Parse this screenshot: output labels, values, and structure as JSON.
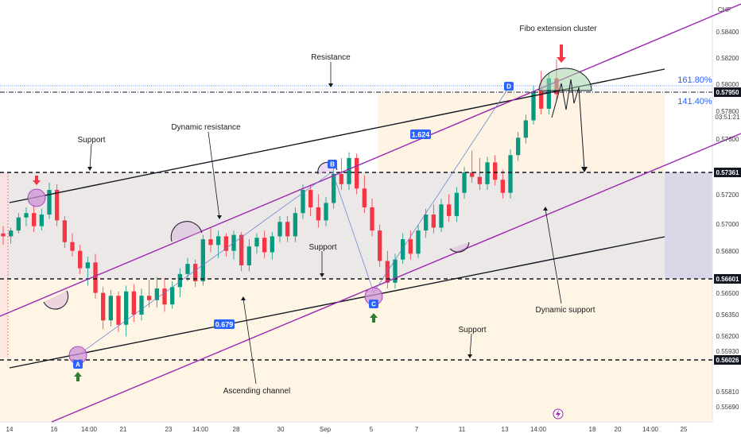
{
  "currency": "CHF",
  "colors": {
    "up": "#089981",
    "down": "#f23645",
    "channel_purple": "#9c27b0",
    "accent_blue": "#2962ff",
    "band": "#d9d2cf",
    "arrow_green": "#2e7d32",
    "arrow_red": "#f23645"
  },
  "chart_data": {
    "type": "candlestick",
    "instrument_currency": "CHF",
    "x_tick_labels": [
      "14",
      "16",
      "14:00",
      "21",
      "23",
      "14:00",
      "28",
      "30",
      "Sep",
      "5",
      "7",
      "11",
      "13",
      "14:00",
      "18",
      "20",
      "14:00",
      "25"
    ],
    "y_tick_labels": [
      "0.58400",
      "0.58200",
      "0.58000",
      "0.57800",
      "0.57600",
      "0.57200",
      "0.57000",
      "0.56800",
      "0.56500",
      "0.56350",
      "0.56200",
      "0.55930",
      "0.55810",
      "0.55690"
    ],
    "ylim": [
      0.5558,
      0.5849
    ],
    "price_levels": [
      {
        "value": 0.5795,
        "label": "0.57950",
        "style": "dash-dot"
      },
      {
        "value": 0.57361,
        "label": "0.57361",
        "style": "dashed"
      },
      {
        "value": 0.56601,
        "label": "0.56601",
        "style": "dashed"
      },
      {
        "value": 0.56026,
        "label": "0.56026",
        "style": "dashed"
      }
    ],
    "current_time_label": "03:51:21",
    "fibo_levels": [
      {
        "label": "161.80%",
        "value": 0.58
      },
      {
        "label": "141.40%",
        "value": 0.5783
      }
    ],
    "measure_labels": [
      "0.679",
      "1.624"
    ],
    "pattern_points": [
      {
        "label": "A",
        "value": 0.5603
      },
      {
        "label": "B",
        "value": 0.5745
      },
      {
        "label": "C",
        "value": 0.565
      },
      {
        "label": "D",
        "value": 0.5796
      }
    ],
    "annotations": [
      "Fibo extension cluster",
      "Resistance",
      "Dynamic resistance",
      "Support",
      "Support",
      "Support",
      "Ascending channel",
      "Dynamic support"
    ],
    "candles": [
      [
        0.5688,
        0.5693,
        0.568,
        0.5686
      ],
      [
        0.5686,
        0.5692,
        0.5681,
        0.569
      ],
      [
        0.569,
        0.5702,
        0.5688,
        0.5699
      ],
      [
        0.5699,
        0.5706,
        0.5693,
        0.5702
      ],
      [
        0.5702,
        0.5708,
        0.5689,
        0.5693
      ],
      [
        0.5693,
        0.5705,
        0.569,
        0.5701
      ],
      [
        0.5701,
        0.5723,
        0.5698,
        0.5718
      ],
      [
        0.5718,
        0.5722,
        0.5693,
        0.5697
      ],
      [
        0.5697,
        0.57,
        0.5678,
        0.5682
      ],
      [
        0.5682,
        0.5688,
        0.5672,
        0.5676
      ],
      [
        0.5676,
        0.568,
        0.566,
        0.5664
      ],
      [
        0.5664,
        0.5672,
        0.5652,
        0.5668
      ],
      [
        0.5668,
        0.5674,
        0.5643,
        0.5647
      ],
      [
        0.5647,
        0.5651,
        0.5622,
        0.5628
      ],
      [
        0.5628,
        0.5649,
        0.5624,
        0.5645
      ],
      [
        0.5645,
        0.5648,
        0.562,
        0.5625
      ],
      [
        0.5625,
        0.5652,
        0.5617,
        0.5648
      ],
      [
        0.5648,
        0.5653,
        0.5627,
        0.5632
      ],
      [
        0.5632,
        0.565,
        0.5628,
        0.5645
      ],
      [
        0.5645,
        0.5656,
        0.5637,
        0.5642
      ],
      [
        0.5642,
        0.5658,
        0.5637,
        0.565
      ],
      [
        0.565,
        0.5657,
        0.5634,
        0.5639
      ],
      [
        0.5639,
        0.5655,
        0.5636,
        0.5651
      ],
      [
        0.5651,
        0.5664,
        0.5644,
        0.566
      ],
      [
        0.566,
        0.5671,
        0.5655,
        0.5667
      ],
      [
        0.5667,
        0.567,
        0.5651,
        0.5655
      ],
      [
        0.5655,
        0.5687,
        0.5652,
        0.5684
      ],
      [
        0.5684,
        0.5692,
        0.5675,
        0.568
      ],
      [
        0.568,
        0.569,
        0.5671,
        0.5686
      ],
      [
        0.5686,
        0.5688,
        0.5672,
        0.5676
      ],
      [
        0.5676,
        0.569,
        0.567,
        0.5687
      ],
      [
        0.5687,
        0.5689,
        0.5662,
        0.5666
      ],
      [
        0.5666,
        0.5684,
        0.5662,
        0.5679
      ],
      [
        0.5679,
        0.5688,
        0.5674,
        0.5685
      ],
      [
        0.5685,
        0.569,
        0.5671,
        0.5675
      ],
      [
        0.5675,
        0.5689,
        0.567,
        0.5686
      ],
      [
        0.5686,
        0.57,
        0.5682,
        0.5696
      ],
      [
        0.5696,
        0.57,
        0.5682,
        0.5686
      ],
      [
        0.5686,
        0.5706,
        0.5682,
        0.5702
      ],
      [
        0.5702,
        0.5722,
        0.5698,
        0.5718
      ],
      [
        0.5718,
        0.5722,
        0.57,
        0.5706
      ],
      [
        0.5706,
        0.5715,
        0.5692,
        0.5697
      ],
      [
        0.5697,
        0.5713,
        0.5693,
        0.5709
      ],
      [
        0.5709,
        0.5733,
        0.5705,
        0.5729
      ],
      [
        0.5729,
        0.574,
        0.5718,
        0.5722
      ],
      [
        0.5722,
        0.5744,
        0.5718,
        0.574
      ],
      [
        0.574,
        0.5743,
        0.5715,
        0.5719
      ],
      [
        0.5719,
        0.5728,
        0.5702,
        0.5706
      ],
      [
        0.5706,
        0.5712,
        0.5686,
        0.569
      ],
      [
        0.569,
        0.5694,
        0.5665,
        0.5669
      ],
      [
        0.5669,
        0.5676,
        0.565,
        0.5654
      ],
      [
        0.5654,
        0.5674,
        0.565,
        0.567
      ],
      [
        0.567,
        0.5688,
        0.5667,
        0.5684
      ],
      [
        0.5684,
        0.569,
        0.567,
        0.5674
      ],
      [
        0.5674,
        0.5694,
        0.5671,
        0.569
      ],
      [
        0.569,
        0.5705,
        0.5685,
        0.5701
      ],
      [
        0.5701,
        0.5708,
        0.5688,
        0.5692
      ],
      [
        0.5692,
        0.5712,
        0.5689,
        0.5708
      ],
      [
        0.5708,
        0.5715,
        0.5696,
        0.57
      ],
      [
        0.57,
        0.572,
        0.5696,
        0.5716
      ],
      [
        0.5716,
        0.5734,
        0.5712,
        0.573
      ],
      [
        0.573,
        0.5745,
        0.5723,
        0.5727
      ],
      [
        0.5727,
        0.574,
        0.5718,
        0.5722
      ],
      [
        0.5722,
        0.5741,
        0.5718,
        0.5737
      ],
      [
        0.5737,
        0.5742,
        0.5721,
        0.5725
      ],
      [
        0.5725,
        0.5732,
        0.5712,
        0.5716
      ],
      [
        0.5716,
        0.5746,
        0.5712,
        0.5742
      ],
      [
        0.5742,
        0.5758,
        0.5738,
        0.5754
      ],
      [
        0.5754,
        0.577,
        0.575,
        0.5766
      ],
      [
        0.5766,
        0.579,
        0.5763,
        0.5786
      ],
      [
        0.5786,
        0.58,
        0.577,
        0.5774
      ],
      [
        0.5774,
        0.5798,
        0.577,
        0.5795
      ],
      [
        0.5795,
        0.5808,
        0.578,
        0.5784
      ]
    ]
  },
  "annotations": {
    "fibo_cluster": "Fibo extension cluster",
    "resistance": "Resistance",
    "dynamic_resistance": "Dynamic resistance",
    "support_top": "Support",
    "support_mid": "Support",
    "support_low": "Support",
    "ascending_channel": "Ascending channel",
    "dynamic_support": "Dynamic support"
  },
  "points": {
    "a": "A",
    "b": "B",
    "c": "C",
    "d": "D"
  },
  "measures": {
    "lower": "0.679",
    "upper": "1.624"
  },
  "fibo": {
    "upper": "161.80%",
    "lower": "141.40%"
  },
  "bottom_icon": "lightning-icon"
}
